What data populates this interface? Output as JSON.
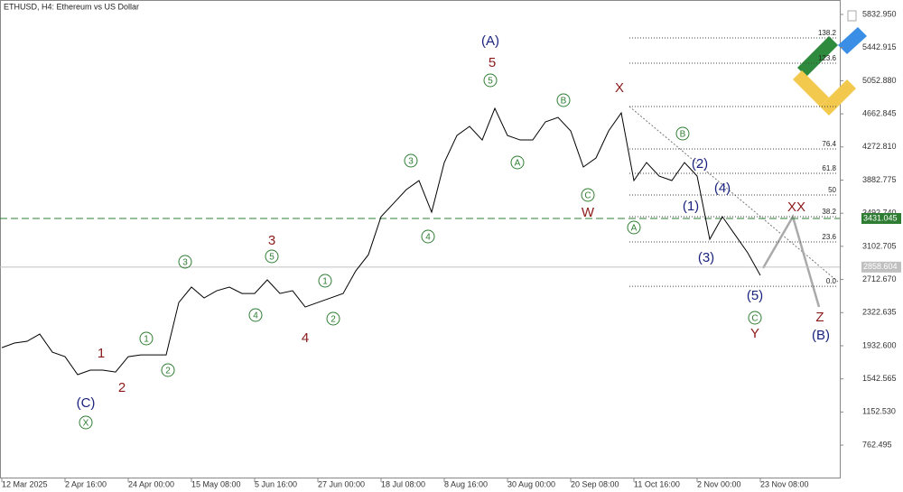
{
  "chart_data": {
    "type": "line",
    "title": "ETHUSD, H4:  Ethereum vs US Dollar",
    "categories": [
      "12 Mar 2025",
      null,
      null,
      null,
      null,
      "2 Apr 16:00",
      null,
      null,
      null,
      null,
      "24 Apr 00:00",
      null,
      null,
      null,
      null,
      "15 May 08:00",
      null,
      null,
      null,
      null,
      "5 Jun 16:00",
      null,
      null,
      null,
      null,
      "27 Jun 00:00",
      null,
      null,
      null,
      null,
      "18 Jul 08:00",
      null,
      null,
      null,
      null,
      "8 Aug 16:00",
      null,
      null,
      null,
      null,
      "30 Aug 00:00",
      null,
      null,
      null,
      null,
      "20 Sep 08:00",
      null,
      null,
      null,
      null,
      "11 Oct 16:00",
      null,
      null,
      null,
      null,
      "2 Nov 00:00",
      null,
      null,
      null,
      null,
      "23 Nov 08:00"
    ],
    "values": [
      1910,
      1964,
      1985,
      2070,
      1857,
      1804,
      1592,
      1645,
      1645,
      1623,
      1804,
      1825,
      1825,
      1825,
      2442,
      2623,
      2495,
      2580,
      2623,
      2548,
      2548,
      2708,
      2548,
      2580,
      2389,
      2442,
      2495,
      2548,
      2814,
      3005,
      3452,
      3611,
      3771,
      3877,
      3505,
      4090,
      4408,
      4515,
      4355,
      4727,
      4408,
      4355,
      4355,
      4568,
      4621,
      4462,
      4037,
      4143,
      4462,
      4674,
      3877,
      4090,
      3930,
      3877,
      4090,
      3930,
      3186,
      3452,
      3239,
      3027,
      2761
    ],
    "color": "#000000",
    "ylim": [
      370,
      6003
    ],
    "yticks": [
      {
        "value": 5832.95,
        "label": "5832.950"
      },
      {
        "value": 5442.915,
        "label": "5442.915"
      },
      {
        "value": 5052.88,
        "label": "5052.880"
      },
      {
        "value": 4662.845,
        "label": "4662.845"
      },
      {
        "value": 4272.81,
        "label": "4272.810"
      },
      {
        "value": 3882.775,
        "label": "3882.775"
      },
      {
        "value": 3492.74,
        "label": "3492.740"
      },
      {
        "value": 3102.705,
        "label": "3102.705"
      },
      {
        "value": 2712.67,
        "label": "2712.670"
      },
      {
        "value": 2322.635,
        "label": "2322.635"
      },
      {
        "value": 1932.6,
        "label": "1932.600"
      },
      {
        "value": 1542.565,
        "label": "1542.565"
      },
      {
        "value": 1152.53,
        "label": "1152.530"
      },
      {
        "value": 762.495,
        "label": "762.495"
      }
    ],
    "price_lines": [
      {
        "value": 3431.045,
        "label": "3431.045",
        "color": "#2e7d32"
      },
      {
        "value": 2858.604,
        "label": "2858.604",
        "color": "#c0c0c0"
      }
    ],
    "fib_prices": [
      5557,
      5259,
      4749,
      4249,
      3962,
      3707,
      3452,
      3154,
      2633
    ],
    "fib_labels": [
      "138.2",
      "123.6",
      null,
      "76.4",
      "61.8",
      "50",
      "38.2",
      "23.6",
      "0.0"
    ],
    "annotations": [
      {
        "text": "(A)",
        "color": "#1a237e"
      },
      {
        "text": "5",
        "color": "#8b1a1a"
      },
      {
        "text": "5",
        "color": "#2e7d32",
        "circled": true
      },
      {
        "text": "B",
        "color": "#2e7d32",
        "circled": true
      },
      {
        "text": "A",
        "color": "#2e7d32",
        "circled": true
      },
      {
        "text": "C",
        "color": "#2e7d32",
        "circled": true
      },
      {
        "text": "W",
        "color": "#8b1a1a"
      },
      {
        "text": "X",
        "color": "#8b1a1a"
      },
      {
        "text": "B",
        "color": "#2e7d32",
        "circled": true
      },
      {
        "text": "(2)",
        "color": "#1a237e"
      },
      {
        "text": "(4)",
        "color": "#1a237e"
      },
      {
        "text": "(1)",
        "color": "#1a237e"
      },
      {
        "text": "A",
        "color": "#2e7d32",
        "circled": true
      },
      {
        "text": "(3)",
        "color": "#1a237e"
      },
      {
        "text": "(5)",
        "color": "#1a237e"
      },
      {
        "text": "C",
        "color": "#2e7d32",
        "circled": true
      },
      {
        "text": "Y",
        "color": "#8b1a1a"
      },
      {
        "text": "XX",
        "color": "#8b1a1a"
      },
      {
        "text": "Z",
        "color": "#8b1a1a"
      },
      {
        "text": "(B)",
        "color": "#1a237e"
      },
      {
        "text": "3",
        "color": "#2e7d32",
        "circled": true
      },
      {
        "text": "4",
        "color": "#2e7d32",
        "circled": true
      },
      {
        "text": "3",
        "color": "#8b1a1a"
      },
      {
        "text": "5",
        "color": "#2e7d32",
        "circled": true
      },
      {
        "text": "3",
        "color": "#2e7d32",
        "circled": true
      },
      {
        "text": "4",
        "color": "#2e7d32",
        "circled": true
      },
      {
        "text": "1",
        "color": "#2e7d32",
        "circled": true
      },
      {
        "text": "2",
        "color": "#2e7d32",
        "circled": true
      },
      {
        "text": "4",
        "color": "#8b1a1a"
      },
      {
        "text": "1",
        "color": "#2e7d32",
        "circled": true
      },
      {
        "text": "2",
        "color": "#2e7d32",
        "circled": true
      },
      {
        "text": "1",
        "color": "#8b1a1a"
      },
      {
        "text": "2",
        "color": "#8b1a1a"
      },
      {
        "text": "(C)",
        "color": "#1a237e"
      },
      {
        "text": "X",
        "color": "#2e7d32",
        "circled": true
      }
    ]
  }
}
